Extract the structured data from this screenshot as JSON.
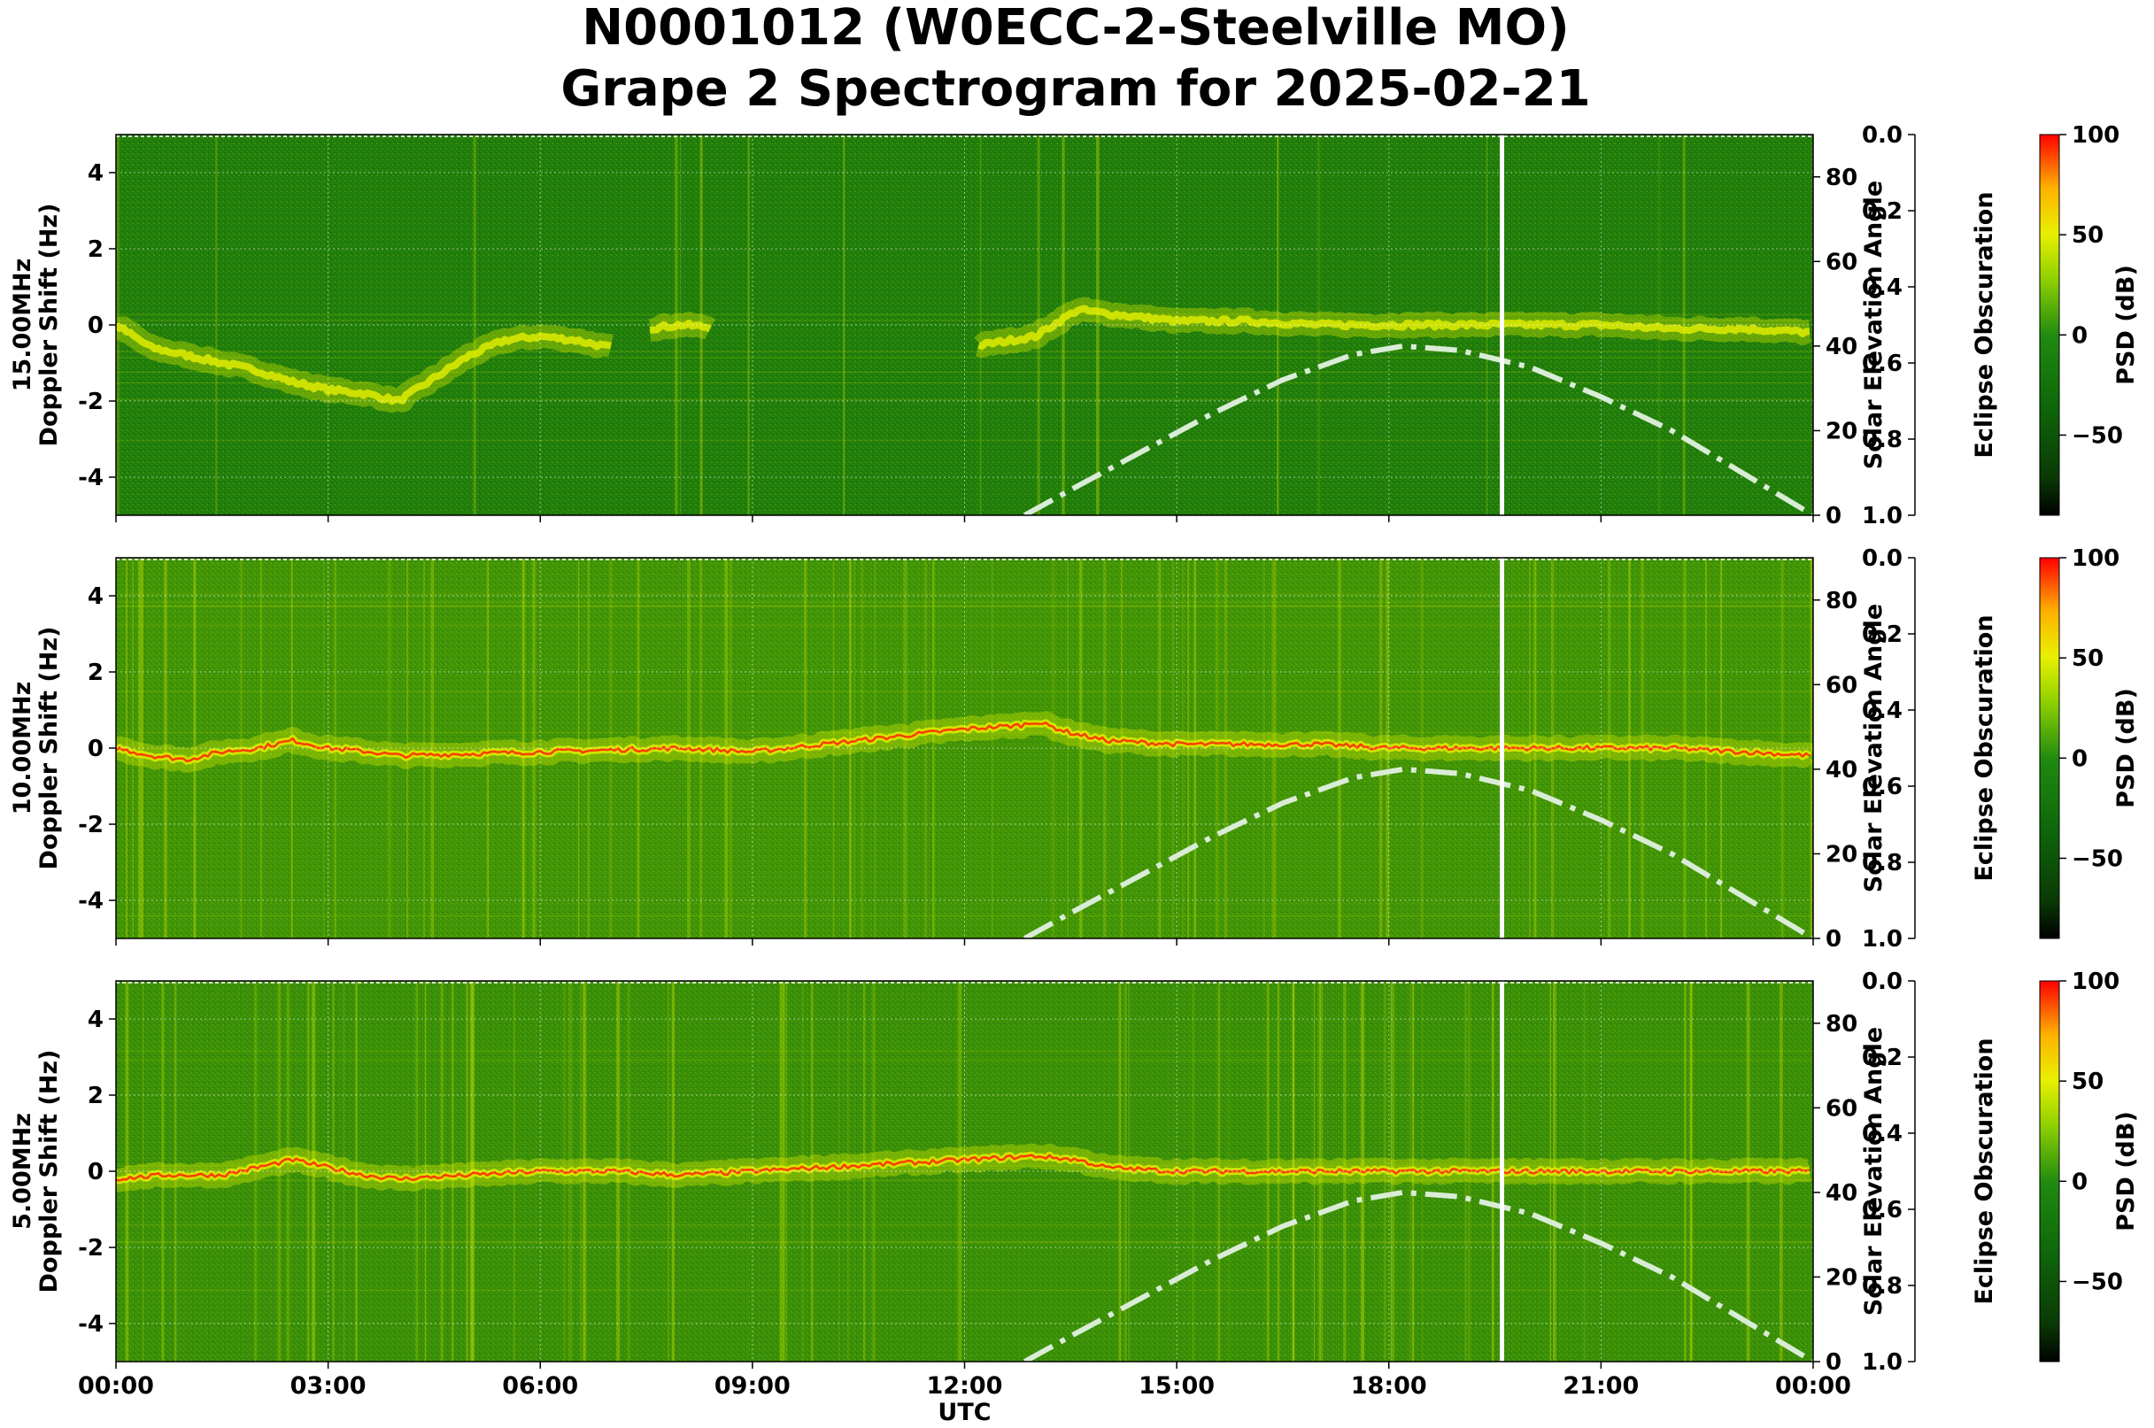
{
  "title_line1": "N0001012 (W0ECC-2-Steelville MO)",
  "title_line2": "Grape 2 Spectrogram for 2025-02-21",
  "colors": {
    "background_green": "#1f7d0c",
    "signal_yellow": "#e6f000",
    "signal_red": "#ff2a00",
    "solar_curve": "#d9ecd6",
    "eclipse_marker": "#ffffff",
    "axes_text": "#000000"
  },
  "chart_data": [
    {
      "type": "heatmap",
      "panel": "15.00MHz",
      "ylabel_line1": "15.00MHz",
      "ylabel_line2": "Doppler Shift (Hz)",
      "xlabel": "",
      "ylim": [
        -5,
        5
      ],
      "yticks": [
        4,
        2,
        0,
        -2,
        -4
      ],
      "xticks": [
        "00:00",
        "03:00",
        "06:00",
        "09:00",
        "12:00",
        "15:00",
        "18:00",
        "21:00",
        "00:00"
      ],
      "xticks_labeled": false,
      "x_range_hours": [
        0,
        24
      ],
      "grid": true,
      "right_axis_label": "Solar Elevation Angle",
      "right_ylim": [
        0,
        90
      ],
      "right_yticks": [
        0,
        20,
        40,
        60,
        80
      ],
      "eclipse_axis_label": "Eclipse Obscuration",
      "eclipse_ylim": [
        1.0,
        0.0
      ],
      "eclipse_yticks": [
        "0.0",
        "0.2",
        "0.4",
        "0.6",
        "0.8",
        "1.0"
      ],
      "colorbar_label": "PSD (dB)",
      "colorbar_ticks": [
        100,
        50,
        0,
        -50
      ],
      "colorbar_range": [
        -90,
        100
      ],
      "eclipse_marker_hour": 19.6,
      "doppler_trace": {
        "hours": [
          0,
          0.5,
          1.0,
          1.5,
          2.0,
          2.5,
          3.0,
          3.5,
          4.0,
          4.5,
          5.0,
          5.5,
          6.0,
          6.5,
          7.0,
          7.5,
          8.0,
          12.0,
          13.0,
          13.6,
          14.0,
          15.0,
          16.0,
          17.0,
          18.0,
          19.0,
          20.0,
          21.0,
          22.0,
          23.0,
          24.0
        ],
        "doppler_hz": [
          0.0,
          -0.6,
          -0.8,
          -1.0,
          -1.2,
          -1.5,
          -1.7,
          -1.8,
          -2.0,
          -1.4,
          -0.8,
          -0.4,
          -0.3,
          -0.4,
          -0.6,
          -0.1,
          0.0,
          -0.6,
          -0.3,
          0.4,
          0.3,
          0.1,
          0.1,
          0.0,
          0.0,
          0.0,
          0.0,
          0.0,
          -0.1,
          -0.1,
          -0.2
        ],
        "present_hours": [
          [
            0,
            7.0
          ],
          [
            7.5,
            8.4
          ],
          [
            12.2,
            24
          ]
        ]
      },
      "solar_elevation": {
        "hours": [
          12.85,
          13.5,
          14.5,
          15.5,
          16.5,
          17.5,
          18.2,
          19.0,
          20.0,
          21.0,
          22.0,
          23.0,
          24.0
        ],
        "degrees": [
          0,
          6,
          15,
          24,
          32,
          38,
          40,
          39,
          35,
          28,
          20,
          10,
          0
        ]
      }
    },
    {
      "type": "heatmap",
      "panel": "10.00MHz",
      "ylabel_line1": "10.00MHz",
      "ylabel_line2": "Doppler Shift (Hz)",
      "xlabel": "",
      "ylim": [
        -5,
        5
      ],
      "yticks": [
        4,
        2,
        0,
        -2,
        -4
      ],
      "xticks": [
        "00:00",
        "03:00",
        "06:00",
        "09:00",
        "12:00",
        "15:00",
        "18:00",
        "21:00",
        "00:00"
      ],
      "xticks_labeled": false,
      "x_range_hours": [
        0,
        24
      ],
      "grid": true,
      "right_axis_label": "Solar Elevation Angle",
      "right_ylim": [
        0,
        90
      ],
      "right_yticks": [
        0,
        20,
        40,
        60,
        80
      ],
      "eclipse_axis_label": "Eclipse Obscuration",
      "eclipse_ylim": [
        1.0,
        0.0
      ],
      "eclipse_yticks": [
        "0.0",
        "0.2",
        "0.4",
        "0.6",
        "0.8",
        "1.0"
      ],
      "colorbar_label": "PSD (dB)",
      "colorbar_ticks": [
        100,
        50,
        0,
        -50
      ],
      "colorbar_range": [
        -90,
        100
      ],
      "eclipse_marker_hour": 19.6,
      "doppler_trace": {
        "hours": [
          0,
          0.5,
          1.0,
          1.5,
          2.0,
          2.5,
          3.0,
          3.6,
          4.0,
          6.0,
          8.0,
          9.0,
          10.0,
          11.0,
          12.0,
          12.8,
          13.0,
          13.5,
          14.0,
          15.0,
          16.0,
          17.0,
          18.0,
          19.0,
          20.0,
          21.0,
          22.0,
          23.0,
          24.0
        ],
        "doppler_hz": [
          0.0,
          -0.2,
          -0.3,
          -0.1,
          0.0,
          0.2,
          0.0,
          -0.1,
          -0.2,
          -0.1,
          0.0,
          -0.1,
          0.1,
          0.3,
          0.5,
          0.6,
          0.7,
          0.4,
          0.2,
          0.1,
          0.1,
          0.1,
          0.0,
          0.0,
          0.0,
          0.0,
          0.0,
          -0.1,
          -0.2
        ],
        "present_hours": [
          [
            0,
            24
          ]
        ]
      },
      "solar_elevation": {
        "hours": [
          12.85,
          13.5,
          14.5,
          15.5,
          16.5,
          17.5,
          18.2,
          19.0,
          20.0,
          21.0,
          22.0,
          23.0,
          24.0
        ],
        "degrees": [
          0,
          6,
          15,
          24,
          32,
          38,
          40,
          39,
          35,
          28,
          20,
          10,
          0
        ]
      }
    },
    {
      "type": "heatmap",
      "panel": "5.00MHz",
      "ylabel_line1": "5.00MHz",
      "ylabel_line2": "Doppler Shift (Hz)",
      "xlabel": "UTC",
      "ylim": [
        -5,
        5
      ],
      "yticks": [
        4,
        2,
        0,
        -2,
        -4
      ],
      "xticks": [
        "00:00",
        "03:00",
        "06:00",
        "09:00",
        "12:00",
        "15:00",
        "18:00",
        "21:00",
        "00:00"
      ],
      "xticks_labeled": true,
      "x_range_hours": [
        0,
        24
      ],
      "grid": true,
      "right_axis_label": "Solar Elevation Angle",
      "right_ylim": [
        0,
        90
      ],
      "right_yticks": [
        0,
        20,
        40,
        60,
        80
      ],
      "eclipse_axis_label": "Eclipse Obscuration",
      "eclipse_ylim": [
        1.0,
        0.0
      ],
      "eclipse_yticks": [
        "0.0",
        "0.2",
        "0.4",
        "0.6",
        "0.8",
        "1.0"
      ],
      "colorbar_label": "PSD (dB)",
      "colorbar_ticks": [
        100,
        50,
        0,
        -50
      ],
      "colorbar_range": [
        -90,
        100
      ],
      "eclipse_marker_hour": 19.6,
      "doppler_trace": {
        "hours": [
          0,
          0.7,
          1.5,
          2.0,
          2.5,
          3.0,
          3.5,
          4.0,
          5.0,
          6.0,
          7.0,
          8.0,
          9.0,
          10.0,
          11.0,
          12.0,
          13.0,
          13.6,
          14.0,
          15.0,
          16.0,
          17.0,
          18.0,
          19.0,
          20.0,
          21.0,
          22.0,
          23.0,
          24.0
        ],
        "doppler_hz": [
          -0.2,
          -0.1,
          -0.1,
          0.1,
          0.3,
          0.1,
          -0.1,
          -0.2,
          -0.1,
          0.0,
          0.0,
          -0.1,
          0.0,
          0.1,
          0.2,
          0.3,
          0.4,
          0.3,
          0.1,
          0.0,
          0.0,
          0.0,
          0.0,
          0.0,
          0.0,
          0.0,
          0.0,
          0.0,
          0.0
        ],
        "present_hours": [
          [
            0,
            24
          ]
        ]
      },
      "solar_elevation": {
        "hours": [
          12.85,
          13.5,
          14.5,
          15.5,
          16.5,
          17.5,
          18.2,
          19.0,
          20.0,
          21.0,
          22.0,
          23.0,
          24.0
        ],
        "degrees": [
          0,
          6,
          15,
          24,
          32,
          38,
          40,
          39,
          35,
          28,
          20,
          10,
          0
        ]
      }
    }
  ]
}
